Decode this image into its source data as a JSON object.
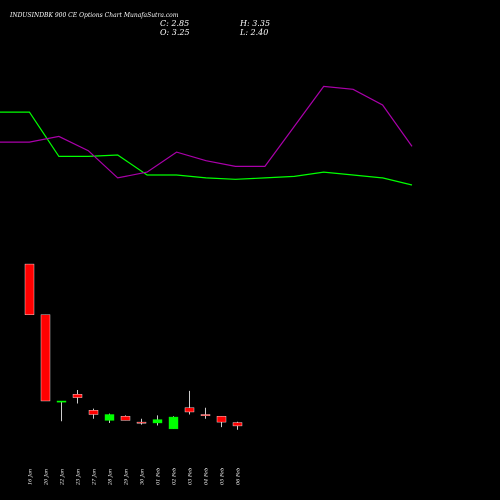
{
  "chart_data": {
    "type": "candlestick",
    "title": "INDUSINDBK 900 CE Options Chart MunafaSutra.com",
    "ohlc_header": {
      "C": "C: 2.85",
      "O": "O: 3.25",
      "H": "H: 3.35",
      "L": "L: 2.40"
    },
    "x_labels": [
      "16 Jan",
      "20 Jan",
      "22 Jan",
      "23 Jan",
      "27 Jan",
      "28 Jan",
      "29 Jan",
      "30 Jan",
      "01 Feb",
      "02 Feb",
      "03 Feb",
      "04 Feb",
      "05 Feb",
      "06 Feb"
    ],
    "candles": [
      {
        "o": 22.0,
        "h": 22.0,
        "l": 16.0,
        "c": 16.0,
        "color": "red"
      },
      {
        "o": 16.0,
        "h": 16.0,
        "l": 5.8,
        "c": 5.8,
        "color": "red"
      },
      {
        "o": 5.8,
        "h": 5.8,
        "l": 3.4,
        "c": 5.7,
        "color": "green"
      },
      {
        "o": 6.6,
        "h": 7.1,
        "l": 5.5,
        "c": 6.2,
        "color": "red"
      },
      {
        "o": 4.7,
        "h": 4.9,
        "l": 3.7,
        "c": 4.2,
        "color": "red"
      },
      {
        "o": 3.5,
        "h": 4.3,
        "l": 3.2,
        "c": 4.2,
        "color": "green"
      },
      {
        "o": 4.0,
        "h": 4.1,
        "l": 3.5,
        "c": 3.5,
        "color": "red"
      },
      {
        "o": 3.3,
        "h": 3.7,
        "l": 3.0,
        "c": 3.2,
        "color": "red"
      },
      {
        "o": 3.2,
        "h": 4.1,
        "l": 2.9,
        "c": 3.6,
        "color": "green"
      },
      {
        "o": 2.5,
        "h": 4.0,
        "l": 2.5,
        "c": 3.9,
        "color": "green"
      },
      {
        "o": 5.0,
        "h": 7.0,
        "l": 4.2,
        "c": 4.5,
        "color": "red"
      },
      {
        "o": 4.2,
        "h": 5.0,
        "l": 3.7,
        "c": 4.1,
        "color": "red"
      },
      {
        "o": 4.0,
        "h": 4.0,
        "l": 2.7,
        "c": 3.3,
        "color": "red"
      },
      {
        "o": 3.25,
        "h": 3.35,
        "l": 2.4,
        "c": 2.85,
        "color": "red"
      }
    ],
    "ylim": [
      0,
      30
    ],
    "green_line": [
      10.0,
      10.0,
      6.9,
      6.9,
      7.0,
      5.6,
      5.6,
      5.4,
      5.3,
      5.4,
      5.5,
      5.8,
      5.6,
      5.4,
      4.9
    ],
    "purple_line": [
      7.9,
      7.9,
      8.3,
      7.3,
      5.4,
      5.8,
      7.2,
      6.6,
      6.2,
      6.2,
      9.0,
      11.8,
      11.6,
      10.5,
      7.6
    ],
    "colors": {
      "background": "#000000",
      "up": "#00ff00",
      "down": "#ff0000",
      "neutral": "#ffffff",
      "green_line": "#00ff00",
      "purple_line": "#aa00aa"
    }
  }
}
